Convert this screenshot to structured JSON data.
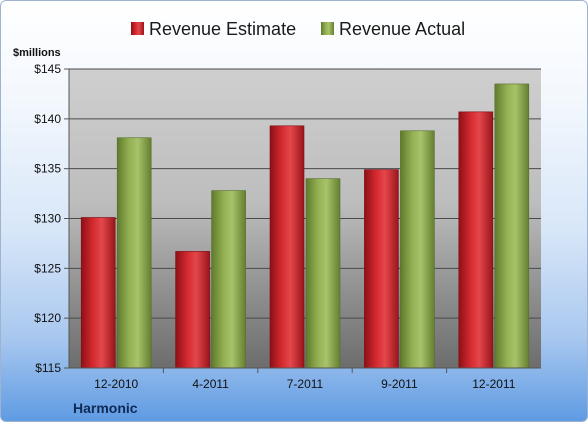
{
  "chart_data": {
    "type": "bar",
    "ylabel": "$millions",
    "categories": [
      "12-2010",
      "4-2011",
      "7-2011",
      "9-2011",
      "12-2011"
    ],
    "series": [
      {
        "name": "Revenue Estimate",
        "color": "#c8232b",
        "values": [
          130.1,
          126.7,
          139.3,
          134.9,
          140.7
        ]
      },
      {
        "name": "Revenue Actual",
        "color": "#8aa64b",
        "values": [
          138.1,
          132.8,
          134.0,
          138.8,
          143.5
        ]
      }
    ],
    "ylim": [
      115,
      145
    ],
    "yticks": [
      "$115",
      "$120",
      "$125",
      "$130",
      "$135",
      "$140",
      "$145"
    ],
    "ytick_values": [
      115,
      120,
      125,
      130,
      135,
      140,
      145
    ],
    "grid": true,
    "legend_position": "top",
    "footer_label": "Harmonic"
  }
}
